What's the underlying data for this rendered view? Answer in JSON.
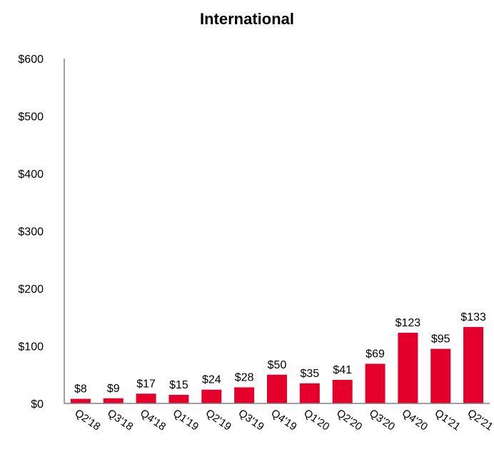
{
  "chart_data": {
    "type": "bar",
    "title": "International",
    "xlabel": "",
    "ylabel": "",
    "categories": [
      "Q2'18",
      "Q3'18",
      "Q4'18",
      "Q1'19",
      "Q2'19",
      "Q3'19",
      "Q4'19",
      "Q1'20",
      "Q2'20",
      "Q3'20",
      "Q4'20",
      "Q1'21",
      "Q2'21"
    ],
    "values": [
      8,
      9,
      17,
      15,
      24,
      28,
      50,
      35,
      41,
      69,
      123,
      95,
      133
    ],
    "value_labels": [
      "$8",
      "$9",
      "$17",
      "$15",
      "$24",
      "$28",
      "$50",
      "$35",
      "$41",
      "$69",
      "$123",
      "$95",
      "$133"
    ],
    "ylim": [
      0,
      600
    ],
    "y_ticks": [
      0,
      100,
      200,
      300,
      400,
      500,
      600
    ],
    "y_tick_labels": [
      "$0",
      "$100",
      "$200",
      "$300",
      "$400",
      "$500",
      "$600"
    ],
    "grid": false,
    "legend": "none",
    "bar_color": "#e4002b"
  }
}
